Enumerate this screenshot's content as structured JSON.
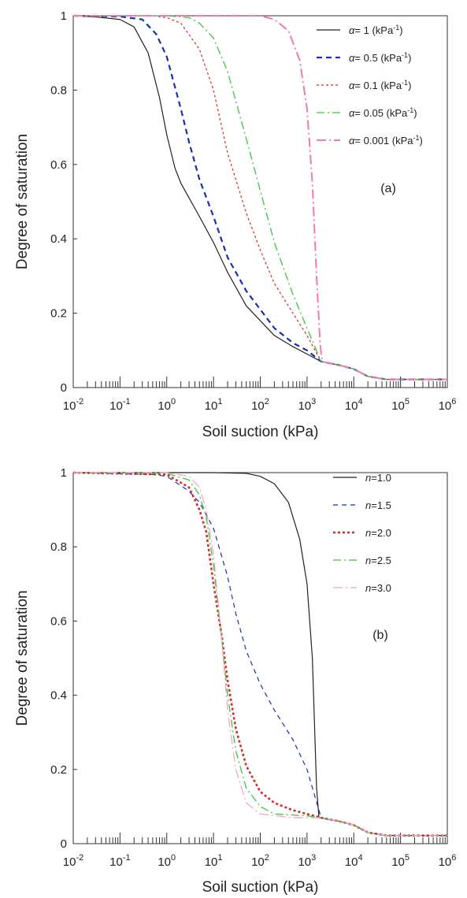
{
  "chart_data": [
    {
      "type": "line",
      "panel_label": "(a)",
      "xlabel": "Soil suction (kPa)",
      "ylabel": "Degree of saturation",
      "xscale": "log",
      "xlim": [
        0.01,
        1000000
      ],
      "ylim": [
        0,
        1
      ],
      "xticks": [
        {
          "base": "10",
          "exp": "-2"
        },
        {
          "base": "10",
          "exp": "-1"
        },
        {
          "base": "10",
          "exp": "0"
        },
        {
          "base": "10",
          "exp": "1"
        },
        {
          "base": "10",
          "exp": "2"
        },
        {
          "base": "10",
          "exp": "3"
        },
        {
          "base": "10",
          "exp": "4"
        },
        {
          "base": "10",
          "exp": "5"
        },
        {
          "base": "10",
          "exp": "6"
        }
      ],
      "yticks": [
        "0",
        "0.2",
        "0.4",
        "0.6",
        "0.8",
        "1"
      ],
      "grid": false,
      "legend_position": "top-right",
      "series": [
        {
          "label": {
            "prefix": "α",
            "value": "= 1",
            "unit": " (kPa",
            "unit_sup": "-1",
            "close": ")"
          },
          "color": "#222222",
          "dash": "",
          "width": 1.2,
          "points": [
            [
              0.01,
              1.0
            ],
            [
              0.03,
              0.997
            ],
            [
              0.1,
              0.99
            ],
            [
              0.2,
              0.97
            ],
            [
              0.4,
              0.9
            ],
            [
              0.7,
              0.78
            ],
            [
              1.0,
              0.68
            ],
            [
              1.5,
              0.59
            ],
            [
              2.0,
              0.55
            ],
            [
              3.0,
              0.51
            ],
            [
              5.0,
              0.46
            ],
            [
              10,
              0.39
            ],
            [
              20,
              0.31
            ],
            [
              50,
              0.22
            ],
            [
              100,
              0.18
            ],
            [
              200,
              0.14
            ],
            [
              500,
              0.11
            ],
            [
              1000,
              0.09
            ],
            [
              2000,
              0.07
            ],
            [
              5000,
              0.06
            ],
            [
              10000,
              0.05
            ],
            [
              20000,
              0.03
            ],
            [
              50000,
              0.022
            ],
            [
              100000,
              0.022
            ],
            [
              1000000,
              0.022
            ]
          ]
        },
        {
          "label": {
            "prefix": "α",
            "value": "= 0.5",
            "unit": " (kPa",
            "unit_sup": "-1",
            "close": ")"
          },
          "color": "#1a2fb0",
          "dash": "7,5",
          "width": 2.2,
          "points": [
            [
              0.01,
              1.0
            ],
            [
              0.1,
              0.998
            ],
            [
              0.3,
              0.99
            ],
            [
              0.6,
              0.95
            ],
            [
              1.0,
              0.89
            ],
            [
              2.0,
              0.75
            ],
            [
              3.0,
              0.66
            ],
            [
              5.0,
              0.56
            ],
            [
              10,
              0.46
            ],
            [
              20,
              0.35
            ],
            [
              50,
              0.26
            ],
            [
              100,
              0.21
            ],
            [
              200,
              0.16
            ],
            [
              500,
              0.12
            ],
            [
              1000,
              0.1
            ],
            [
              2000,
              0.07
            ],
            [
              5000,
              0.06
            ],
            [
              10000,
              0.05
            ],
            [
              20000,
              0.03
            ],
            [
              50000,
              0.022
            ],
            [
              1000000,
              0.022
            ]
          ]
        },
        {
          "label": {
            "prefix": "α",
            "value": "= 0.1",
            "unit": " (kPa",
            "unit_sup": "-1",
            "close": ")"
          },
          "color": "#d42a2a",
          "dash": "3,3",
          "width": 1.2,
          "points": [
            [
              0.01,
              1.0
            ],
            [
              0.5,
              1.0
            ],
            [
              1.0,
              0.995
            ],
            [
              2.0,
              0.98
            ],
            [
              5.0,
              0.91
            ],
            [
              10,
              0.8
            ],
            [
              20,
              0.63
            ],
            [
              30,
              0.56
            ],
            [
              50,
              0.47
            ],
            [
              100,
              0.37
            ],
            [
              200,
              0.28
            ],
            [
              500,
              0.2
            ],
            [
              1000,
              0.14
            ],
            [
              2000,
              0.07
            ],
            [
              5000,
              0.06
            ],
            [
              10000,
              0.05
            ],
            [
              20000,
              0.03
            ],
            [
              50000,
              0.022
            ],
            [
              1000000,
              0.022
            ]
          ]
        },
        {
          "label": {
            "prefix": "α",
            "value": "= 0.05",
            "unit": " (kPa",
            "unit_sup": "-1",
            "close": ")"
          },
          "color": "#3cc43c",
          "dash": "10,4,2,4",
          "width": 1.3,
          "points": [
            [
              0.01,
              1.0
            ],
            [
              1.0,
              1.0
            ],
            [
              3.0,
              0.995
            ],
            [
              5.0,
              0.98
            ],
            [
              10,
              0.94
            ],
            [
              20,
              0.85
            ],
            [
              50,
              0.67
            ],
            [
              100,
              0.53
            ],
            [
              200,
              0.39
            ],
            [
              500,
              0.25
            ],
            [
              1000,
              0.16
            ],
            [
              2000,
              0.07
            ],
            [
              5000,
              0.06
            ],
            [
              10000,
              0.05
            ],
            [
              20000,
              0.03
            ],
            [
              50000,
              0.022
            ],
            [
              1000000,
              0.022
            ]
          ]
        },
        {
          "label": {
            "prefix": "α",
            "value": "= 0.001",
            "unit": " (kPa",
            "unit_sup": "-1",
            "close": ")"
          },
          "color": "#f07ab4",
          "dash": "12,4,2,4",
          "width": 2.0,
          "points": [
            [
              0.01,
              1.0
            ],
            [
              100,
              1.0
            ],
            [
              200,
              0.99
            ],
            [
              400,
              0.96
            ],
            [
              700,
              0.88
            ],
            [
              1000,
              0.75
            ],
            [
              1300,
              0.55
            ],
            [
              1600,
              0.3
            ],
            [
              1900,
              0.12
            ],
            [
              2100,
              0.07
            ],
            [
              5000,
              0.06
            ],
            [
              10000,
              0.05
            ],
            [
              20000,
              0.03
            ],
            [
              50000,
              0.022
            ],
            [
              1000000,
              0.022
            ]
          ]
        }
      ]
    },
    {
      "type": "line",
      "panel_label": "(b)",
      "xlabel": "Soil suction (kPa)",
      "ylabel": "Degree of saturation",
      "xscale": "log",
      "xlim": [
        0.01,
        1000000
      ],
      "ylim": [
        0,
        1
      ],
      "xticks": [
        {
          "base": "10",
          "exp": "-2"
        },
        {
          "base": "10",
          "exp": "-1"
        },
        {
          "base": "10",
          "exp": "0"
        },
        {
          "base": "10",
          "exp": "1"
        },
        {
          "base": "10",
          "exp": "2"
        },
        {
          "base": "10",
          "exp": "3"
        },
        {
          "base": "10",
          "exp": "4"
        },
        {
          "base": "10",
          "exp": "5"
        },
        {
          "base": "10",
          "exp": "6"
        }
      ],
      "yticks": [
        "0",
        "0.2",
        "0.4",
        "0.6",
        "0.8",
        "1"
      ],
      "grid": false,
      "legend_position": "top-right",
      "series": [
        {
          "label": {
            "prefix": "n",
            "value": "=1.0"
          },
          "color": "#222222",
          "dash": "",
          "width": 1.2,
          "points": [
            [
              0.01,
              1.0
            ],
            [
              1.0,
              1.0
            ],
            [
              10,
              1.0
            ],
            [
              50,
              0.998
            ],
            [
              100,
              0.99
            ],
            [
              200,
              0.97
            ],
            [
              400,
              0.92
            ],
            [
              700,
              0.82
            ],
            [
              1000,
              0.7
            ],
            [
              1300,
              0.5
            ],
            [
              1600,
              0.15
            ],
            [
              1800,
              0.07
            ],
            [
              5000,
              0.06
            ],
            [
              10000,
              0.05
            ],
            [
              20000,
              0.03
            ],
            [
              50000,
              0.022
            ],
            [
              1000000,
              0.022
            ]
          ]
        },
        {
          "label": {
            "prefix": "n",
            "value": "=1.5"
          },
          "color": "#1a2fb0",
          "dash": "6,5",
          "width": 1.2,
          "points": [
            [
              0.01,
              1.0
            ],
            [
              0.5,
              0.995
            ],
            [
              1.0,
              0.99
            ],
            [
              3.0,
              0.95
            ],
            [
              5.0,
              0.92
            ],
            [
              10,
              0.85
            ],
            [
              20,
              0.72
            ],
            [
              30,
              0.62
            ],
            [
              50,
              0.52
            ],
            [
              100,
              0.43
            ],
            [
              200,
              0.36
            ],
            [
              500,
              0.28
            ],
            [
              1000,
              0.2
            ],
            [
              2000,
              0.07
            ],
            [
              5000,
              0.06
            ],
            [
              10000,
              0.05
            ],
            [
              20000,
              0.03
            ],
            [
              50000,
              0.022
            ],
            [
              1000000,
              0.022
            ]
          ]
        },
        {
          "label": {
            "prefix": "n",
            "value": "=2.0"
          },
          "color": "#d42a2a",
          "dash": "3,3",
          "width": 2.6,
          "points": [
            [
              0.01,
              1.0
            ],
            [
              1.0,
              0.995
            ],
            [
              3.0,
              0.96
            ],
            [
              5.0,
              0.9
            ],
            [
              7.0,
              0.84
            ],
            [
              10,
              0.7
            ],
            [
              15,
              0.56
            ],
            [
              20,
              0.44
            ],
            [
              30,
              0.31
            ],
            [
              50,
              0.21
            ],
            [
              100,
              0.14
            ],
            [
              200,
              0.11
            ],
            [
              500,
              0.09
            ],
            [
              1000,
              0.08
            ],
            [
              2000,
              0.07
            ],
            [
              5000,
              0.06
            ],
            [
              10000,
              0.05
            ],
            [
              20000,
              0.03
            ],
            [
              50000,
              0.022
            ],
            [
              1000000,
              0.022
            ]
          ]
        },
        {
          "label": {
            "prefix": "n",
            "value": "=2.5"
          },
          "color": "#3cc43c",
          "dash": "10,4,2,4",
          "width": 1.3,
          "points": [
            [
              0.01,
              1.0
            ],
            [
              1.0,
              0.998
            ],
            [
              3.0,
              0.98
            ],
            [
              5.0,
              0.94
            ],
            [
              7.0,
              0.88
            ],
            [
              10,
              0.75
            ],
            [
              15,
              0.55
            ],
            [
              20,
              0.4
            ],
            [
              30,
              0.25
            ],
            [
              50,
              0.15
            ],
            [
              100,
              0.1
            ],
            [
              200,
              0.08
            ],
            [
              1000,
              0.075
            ],
            [
              2000,
              0.07
            ],
            [
              5000,
              0.06
            ],
            [
              10000,
              0.05
            ],
            [
              20000,
              0.03
            ],
            [
              50000,
              0.022
            ],
            [
              1000000,
              0.022
            ]
          ]
        },
        {
          "label": {
            "prefix": "n",
            "value": "=3.0"
          },
          "color": "#f4a0c4",
          "dash": "12,4,2,4",
          "width": 1.2,
          "points": [
            [
              0.01,
              1.0
            ],
            [
              1.0,
              1.0
            ],
            [
              3.0,
              0.99
            ],
            [
              5.0,
              0.96
            ],
            [
              7.0,
              0.9
            ],
            [
              10,
              0.78
            ],
            [
              15,
              0.55
            ],
            [
              20,
              0.36
            ],
            [
              30,
              0.2
            ],
            [
              50,
              0.11
            ],
            [
              100,
              0.08
            ],
            [
              500,
              0.07
            ],
            [
              2000,
              0.07
            ],
            [
              5000,
              0.06
            ],
            [
              10000,
              0.05
            ],
            [
              20000,
              0.03
            ],
            [
              50000,
              0.022
            ],
            [
              1000000,
              0.022
            ]
          ]
        }
      ]
    }
  ]
}
